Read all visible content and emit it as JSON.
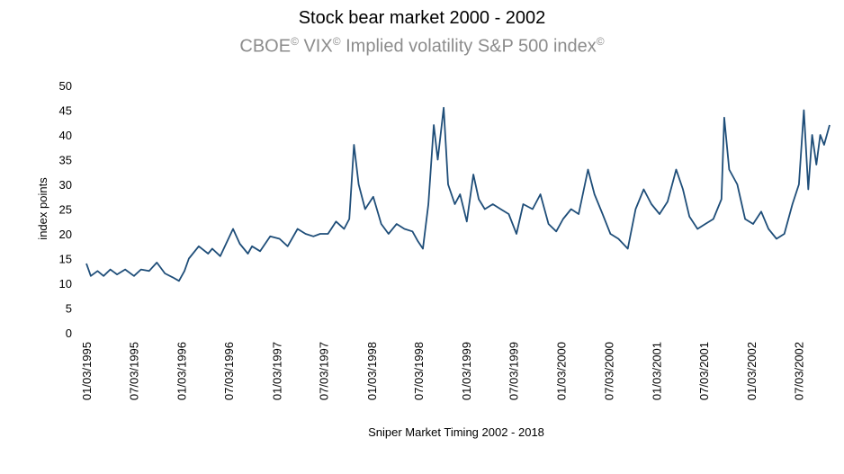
{
  "chart_data": {
    "type": "line",
    "title": "Stock bear market 2000 - 2002",
    "subtitle_parts": [
      "CBOE",
      "©",
      " VIX",
      "©",
      " Implied volatility S&P 500 index",
      "©"
    ],
    "xlabel": "Sniper Market Timing 2002 - 2018",
    "ylabel": "index points",
    "ylim": [
      0,
      50
    ],
    "yticks": [
      0,
      5,
      10,
      15,
      20,
      25,
      30,
      35,
      40,
      45,
      50
    ],
    "xlim": [
      "1995-01-03",
      "2002-10-31"
    ],
    "xticks": [
      {
        "date": "1995-01-03",
        "label": "01/03/1995"
      },
      {
        "date": "1995-07-03",
        "label": "07/03/1995"
      },
      {
        "date": "1996-01-03",
        "label": "01/03/1996"
      },
      {
        "date": "1996-07-03",
        "label": "07/03/1996"
      },
      {
        "date": "1997-01-03",
        "label": "01/03/1997"
      },
      {
        "date": "1997-07-03",
        "label": "07/03/1997"
      },
      {
        "date": "1998-01-03",
        "label": "01/03/1998"
      },
      {
        "date": "1998-07-03",
        "label": "07/03/1998"
      },
      {
        "date": "1999-01-03",
        "label": "01/03/1999"
      },
      {
        "date": "1999-07-03",
        "label": "07/03/1999"
      },
      {
        "date": "2000-01-03",
        "label": "01/03/2000"
      },
      {
        "date": "2000-07-03",
        "label": "07/03/2000"
      },
      {
        "date": "2001-01-03",
        "label": "01/03/2001"
      },
      {
        "date": "2001-07-03",
        "label": "07/03/2001"
      },
      {
        "date": "2002-01-03",
        "label": "01/03/2002"
      },
      {
        "date": "2002-07-03",
        "label": "07/03/2002"
      }
    ],
    "grid": false,
    "legend": "none",
    "series": [
      {
        "color": "#1f4e79",
        "points": [
          [
            "1995-01-03",
            14.0
          ],
          [
            "1995-01-20",
            11.5
          ],
          [
            "1995-02-15",
            12.5
          ],
          [
            "1995-03-10",
            11.5
          ],
          [
            "1995-04-05",
            12.8
          ],
          [
            "1995-05-01",
            11.8
          ],
          [
            "1995-06-01",
            12.8
          ],
          [
            "1995-07-05",
            11.5
          ],
          [
            "1995-08-01",
            12.8
          ],
          [
            "1995-09-01",
            12.5
          ],
          [
            "1995-10-01",
            14.2
          ],
          [
            "1995-11-01",
            12.0
          ],
          [
            "1995-12-01",
            11.2
          ],
          [
            "1995-12-25",
            10.5
          ],
          [
            "1996-01-15",
            12.5
          ],
          [
            "1996-02-01",
            15.0
          ],
          [
            "1996-03-10",
            17.5
          ],
          [
            "1996-04-15",
            16.0
          ],
          [
            "1996-05-01",
            17.0
          ],
          [
            "1996-06-01",
            15.5
          ],
          [
            "1996-07-20",
            21.0
          ],
          [
            "1996-08-15",
            18.0
          ],
          [
            "1996-09-15",
            16.0
          ],
          [
            "1996-10-01",
            17.5
          ],
          [
            "1996-11-01",
            16.5
          ],
          [
            "1996-12-10",
            19.5
          ],
          [
            "1997-01-15",
            19.0
          ],
          [
            "1997-02-15",
            17.5
          ],
          [
            "1997-03-25",
            21.0
          ],
          [
            "1997-04-25",
            20.0
          ],
          [
            "1997-05-25",
            19.5
          ],
          [
            "1997-06-20",
            20.0
          ],
          [
            "1997-07-20",
            20.0
          ],
          [
            "1997-08-20",
            22.5
          ],
          [
            "1997-09-20",
            21.0
          ],
          [
            "1997-10-10",
            23.0
          ],
          [
            "1997-10-28",
            38.0
          ],
          [
            "1997-11-15",
            30.0
          ],
          [
            "1997-12-10",
            25.0
          ],
          [
            "1998-01-10",
            27.5
          ],
          [
            "1998-02-10",
            22.0
          ],
          [
            "1998-03-10",
            20.0
          ],
          [
            "1998-04-10",
            22.0
          ],
          [
            "1998-05-10",
            21.0
          ],
          [
            "1998-06-10",
            20.5
          ],
          [
            "1998-07-01",
            18.5
          ],
          [
            "1998-07-20",
            17.0
          ],
          [
            "1998-08-10",
            26.0
          ],
          [
            "1998-08-31",
            42.0
          ],
          [
            "1998-09-15",
            35.0
          ],
          [
            "1998-10-08",
            45.5
          ],
          [
            "1998-10-25",
            30.0
          ],
          [
            "1998-11-20",
            26.0
          ],
          [
            "1998-12-10",
            28.0
          ],
          [
            "1999-01-05",
            22.5
          ],
          [
            "1999-01-30",
            32.0
          ],
          [
            "1999-02-20",
            27.0
          ],
          [
            "1999-03-15",
            25.0
          ],
          [
            "1999-04-15",
            26.0
          ],
          [
            "1999-05-15",
            25.0
          ],
          [
            "1999-06-15",
            24.0
          ],
          [
            "1999-07-15",
            20.0
          ],
          [
            "1999-08-10",
            26.0
          ],
          [
            "1999-09-15",
            25.0
          ],
          [
            "1999-10-15",
            28.0
          ],
          [
            "1999-11-15",
            22.0
          ],
          [
            "1999-12-15",
            20.5
          ],
          [
            "2000-01-10",
            23.0
          ],
          [
            "2000-02-10",
            25.0
          ],
          [
            "2000-03-10",
            24.0
          ],
          [
            "2000-04-15",
            33.0
          ],
          [
            "2000-05-10",
            28.0
          ],
          [
            "2000-06-10",
            24.0
          ],
          [
            "2000-07-10",
            20.0
          ],
          [
            "2000-08-10",
            19.0
          ],
          [
            "2000-09-15",
            17.0
          ],
          [
            "2000-10-15",
            25.0
          ],
          [
            "2000-11-15",
            29.0
          ],
          [
            "2000-12-15",
            26.0
          ],
          [
            "2001-01-15",
            24.0
          ],
          [
            "2001-02-15",
            26.5
          ],
          [
            "2001-03-20",
            33.0
          ],
          [
            "2001-04-15",
            29.0
          ],
          [
            "2001-05-10",
            23.5
          ],
          [
            "2001-06-10",
            21.0
          ],
          [
            "2001-07-10",
            22.0
          ],
          [
            "2001-08-10",
            23.0
          ],
          [
            "2001-09-10",
            27.0
          ],
          [
            "2001-09-21",
            43.5
          ],
          [
            "2001-10-10",
            33.0
          ],
          [
            "2001-11-10",
            30.0
          ],
          [
            "2001-12-10",
            23.0
          ],
          [
            "2002-01-10",
            22.0
          ],
          [
            "2002-02-10",
            24.5
          ],
          [
            "2002-03-10",
            21.0
          ],
          [
            "2002-04-10",
            19.0
          ],
          [
            "2002-05-10",
            20.0
          ],
          [
            "2002-06-10",
            26.0
          ],
          [
            "2002-07-05",
            30.0
          ],
          [
            "2002-07-24",
            45.0
          ],
          [
            "2002-08-10",
            29.0
          ],
          [
            "2002-08-25",
            40.0
          ],
          [
            "2002-09-10",
            34.0
          ],
          [
            "2002-09-25",
            40.0
          ],
          [
            "2002-10-10",
            38.0
          ],
          [
            "2002-10-31",
            42.0
          ]
        ]
      }
    ]
  }
}
